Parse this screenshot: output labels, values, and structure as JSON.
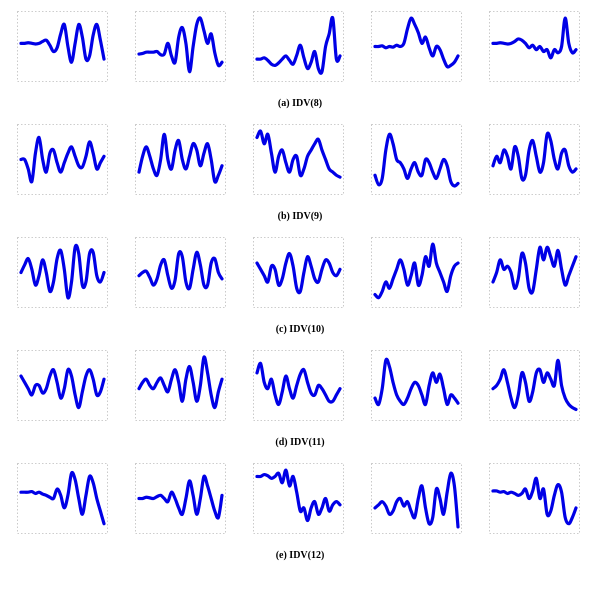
{
  "style": {
    "line_color": "#0000e6",
    "frame_color": "#bdbdbd",
    "background": "#ffffff"
  },
  "captions": [
    "(a) IDV(8)",
    "(b) IDV(9)",
    "(c) IDV(10)",
    "(d) IDV(11)",
    "(e) IDV(12)"
  ],
  "chart_data": {
    "type": "line",
    "title": "",
    "xlabel": "",
    "ylabel": "",
    "grid": false,
    "ylim": [
      0,
      1
    ],
    "rows": [
      {
        "caption": "(a) IDV(8)",
        "panels": [
          {
            "values": [
              0.55,
              0.55,
              0.56,
              0.55,
              0.54,
              0.55,
              0.58,
              0.6,
              0.52,
              0.42,
              0.48,
              0.7,
              0.85,
              0.5,
              0.25,
              0.55,
              0.85,
              0.65,
              0.3,
              0.35,
              0.68,
              0.85,
              0.6,
              0.3
            ]
          },
          {
            "values": [
              0.38,
              0.39,
              0.41,
              0.41,
              0.41,
              0.42,
              0.37,
              0.38,
              0.55,
              0.35,
              0.25,
              0.65,
              0.8,
              0.55,
              0.1,
              0.5,
              0.85,
              0.95,
              0.75,
              0.55,
              0.7,
              0.4,
              0.2,
              0.25
            ]
          },
          {
            "values": [
              0.3,
              0.3,
              0.32,
              0.28,
              0.22,
              0.2,
              0.24,
              0.3,
              0.35,
              0.28,
              0.22,
              0.36,
              0.52,
              0.32,
              0.15,
              0.25,
              0.42,
              0.15,
              0.1,
              0.5,
              0.7,
              0.95,
              0.3,
              0.35
            ]
          },
          {
            "values": [
              0.5,
              0.5,
              0.51,
              0.48,
              0.5,
              0.49,
              0.52,
              0.5,
              0.55,
              0.78,
              0.95,
              0.85,
              0.72,
              0.55,
              0.65,
              0.48,
              0.35,
              0.5,
              0.45,
              0.3,
              0.18,
              0.2,
              0.25,
              0.35
            ]
          },
          {
            "values": [
              0.55,
              0.55,
              0.56,
              0.55,
              0.54,
              0.55,
              0.58,
              0.62,
              0.6,
              0.55,
              0.48,
              0.52,
              0.45,
              0.5,
              0.42,
              0.45,
              0.32,
              0.45,
              0.4,
              0.5,
              0.95,
              0.55,
              0.4,
              0.45
            ]
          }
        ]
      },
      {
        "caption": "(b) IDV(9)",
        "panels": [
          {
            "values": [
              0.5,
              0.5,
              0.35,
              0.15,
              0.6,
              0.85,
              0.5,
              0.3,
              0.6,
              0.65,
              0.45,
              0.3,
              0.45,
              0.6,
              0.7,
              0.55,
              0.4,
              0.38,
              0.55,
              0.78,
              0.6,
              0.35,
              0.45,
              0.55
            ]
          },
          {
            "values": [
              0.3,
              0.55,
              0.7,
              0.55,
              0.35,
              0.25,
              0.5,
              0.9,
              0.5,
              0.35,
              0.65,
              0.8,
              0.5,
              0.35,
              0.55,
              0.75,
              0.65,
              0.4,
              0.6,
              0.75,
              0.5,
              0.15,
              0.25,
              0.4
            ]
          },
          {
            "values": [
              0.85,
              0.95,
              0.75,
              0.9,
              0.6,
              0.3,
              0.55,
              0.65,
              0.45,
              0.3,
              0.5,
              0.55,
              0.25,
              0.35,
              0.55,
              0.65,
              0.75,
              0.82,
              0.65,
              0.5,
              0.35,
              0.3,
              0.25,
              0.22
            ]
          },
          {
            "values": [
              0.25,
              0.1,
              0.2,
              0.65,
              0.9,
              0.75,
              0.5,
              0.45,
              0.35,
              0.2,
              0.35,
              0.45,
              0.3,
              0.25,
              0.5,
              0.45,
              0.3,
              0.2,
              0.35,
              0.5,
              0.4,
              0.15,
              0.08,
              0.12
            ]
          },
          {
            "values": [
              0.4,
              0.55,
              0.45,
              0.65,
              0.55,
              0.35,
              0.7,
              0.55,
              0.2,
              0.25,
              0.65,
              0.8,
              0.55,
              0.3,
              0.45,
              0.9,
              0.8,
              0.5,
              0.35,
              0.6,
              0.65,
              0.4,
              0.3,
              0.35
            ]
          }
        ]
      },
      {
        "caption": "(c) IDV(10)",
        "panels": [
          {
            "values": [
              0.5,
              0.62,
              0.72,
              0.55,
              0.3,
              0.45,
              0.7,
              0.5,
              0.2,
              0.35,
              0.72,
              0.85,
              0.55,
              0.1,
              0.35,
              0.9,
              0.8,
              0.3,
              0.35,
              0.8,
              0.82,
              0.45,
              0.35,
              0.5
            ]
          },
          {
            "values": [
              0.45,
              0.5,
              0.52,
              0.42,
              0.3,
              0.4,
              0.62,
              0.7,
              0.45,
              0.25,
              0.38,
              0.8,
              0.75,
              0.35,
              0.25,
              0.55,
              0.82,
              0.62,
              0.3,
              0.3,
              0.65,
              0.72,
              0.5,
              0.4
            ]
          },
          {
            "values": [
              0.65,
              0.55,
              0.45,
              0.35,
              0.6,
              0.55,
              0.3,
              0.4,
              0.65,
              0.8,
              0.6,
              0.25,
              0.2,
              0.5,
              0.75,
              0.6,
              0.4,
              0.35,
              0.55,
              0.7,
              0.65,
              0.5,
              0.45,
              0.55
            ]
          },
          {
            "values": [
              0.15,
              0.1,
              0.2,
              0.35,
              0.25,
              0.4,
              0.55,
              0.7,
              0.55,
              0.3,
              0.45,
              0.65,
              0.3,
              0.45,
              0.75,
              0.6,
              0.95,
              0.65,
              0.5,
              0.35,
              0.2,
              0.45,
              0.6,
              0.65
            ]
          },
          {
            "values": [
              0.35,
              0.5,
              0.7,
              0.55,
              0.6,
              0.5,
              0.25,
              0.4,
              0.8,
              0.65,
              0.25,
              0.2,
              0.55,
              0.9,
              0.7,
              0.9,
              0.75,
              0.6,
              0.85,
              0.55,
              0.3,
              0.45,
              0.6,
              0.75
            ]
          }
        ]
      },
      {
        "caption": "(d) IDV(11)",
        "panels": [
          {
            "values": [
              0.65,
              0.55,
              0.45,
              0.35,
              0.5,
              0.5,
              0.38,
              0.45,
              0.65,
              0.75,
              0.55,
              0.3,
              0.45,
              0.75,
              0.65,
              0.35,
              0.15,
              0.4,
              0.65,
              0.75,
              0.6,
              0.35,
              0.4,
              0.6
            ]
          },
          {
            "values": [
              0.45,
              0.55,
              0.6,
              0.5,
              0.45,
              0.55,
              0.62,
              0.5,
              0.4,
              0.6,
              0.75,
              0.55,
              0.25,
              0.6,
              0.8,
              0.55,
              0.25,
              0.5,
              0.95,
              0.7,
              0.35,
              0.15,
              0.4,
              0.6
            ]
          },
          {
            "values": [
              0.7,
              0.85,
              0.55,
              0.45,
              0.6,
              0.35,
              0.2,
              0.4,
              0.65,
              0.45,
              0.3,
              0.5,
              0.68,
              0.75,
              0.55,
              0.38,
              0.35,
              0.5,
              0.45,
              0.35,
              0.25,
              0.25,
              0.35,
              0.45
            ]
          },
          {
            "values": [
              0.3,
              0.2,
              0.45,
              0.9,
              0.8,
              0.55,
              0.35,
              0.25,
              0.2,
              0.3,
              0.45,
              0.55,
              0.5,
              0.35,
              0.2,
              0.5,
              0.7,
              0.55,
              0.68,
              0.45,
              0.2,
              0.35,
              0.3,
              0.22
            ]
          },
          {
            "values": [
              0.45,
              0.5,
              0.6,
              0.75,
              0.55,
              0.3,
              0.15,
              0.35,
              0.7,
              0.55,
              0.25,
              0.4,
              0.7,
              0.75,
              0.55,
              0.7,
              0.6,
              0.5,
              0.9,
              0.5,
              0.3,
              0.2,
              0.15,
              0.12
            ]
          }
        ]
      },
      {
        "caption": "(e) IDV(12)",
        "panels": [
          {
            "values": [
              0.6,
              0.6,
              0.6,
              0.61,
              0.58,
              0.6,
              0.57,
              0.55,
              0.52,
              0.5,
              0.65,
              0.55,
              0.35,
              0.55,
              0.9,
              0.8,
              0.5,
              0.25,
              0.55,
              0.85,
              0.75,
              0.5,
              0.3,
              0.1
            ]
          },
          {
            "values": [
              0.5,
              0.5,
              0.52,
              0.51,
              0.5,
              0.53,
              0.55,
              0.5,
              0.45,
              0.6,
              0.5,
              0.35,
              0.25,
              0.5,
              0.78,
              0.55,
              0.25,
              0.5,
              0.85,
              0.7,
              0.5,
              0.3,
              0.2,
              0.55
            ]
          },
          {
            "values": [
              0.85,
              0.85,
              0.88,
              0.86,
              0.82,
              0.85,
              0.9,
              0.75,
              0.95,
              0.7,
              0.85,
              0.6,
              0.3,
              0.35,
              0.15,
              0.35,
              0.45,
              0.25,
              0.35,
              0.5,
              0.3,
              0.4,
              0.45,
              0.4
            ]
          },
          {
            "values": [
              0.35,
              0.4,
              0.45,
              0.38,
              0.25,
              0.3,
              0.45,
              0.5,
              0.38,
              0.45,
              0.3,
              0.2,
              0.5,
              0.7,
              0.35,
              0.1,
              0.2,
              0.65,
              0.5,
              0.25,
              0.6,
              0.9,
              0.7,
              0.05
            ]
          },
          {
            "values": [
              0.62,
              0.62,
              0.6,
              0.61,
              0.58,
              0.6,
              0.58,
              0.55,
              0.58,
              0.65,
              0.5,
              0.62,
              0.82,
              0.5,
              0.65,
              0.25,
              0.3,
              0.55,
              0.72,
              0.6,
              0.2,
              0.1,
              0.2,
              0.35
            ]
          }
        ]
      }
    ]
  }
}
